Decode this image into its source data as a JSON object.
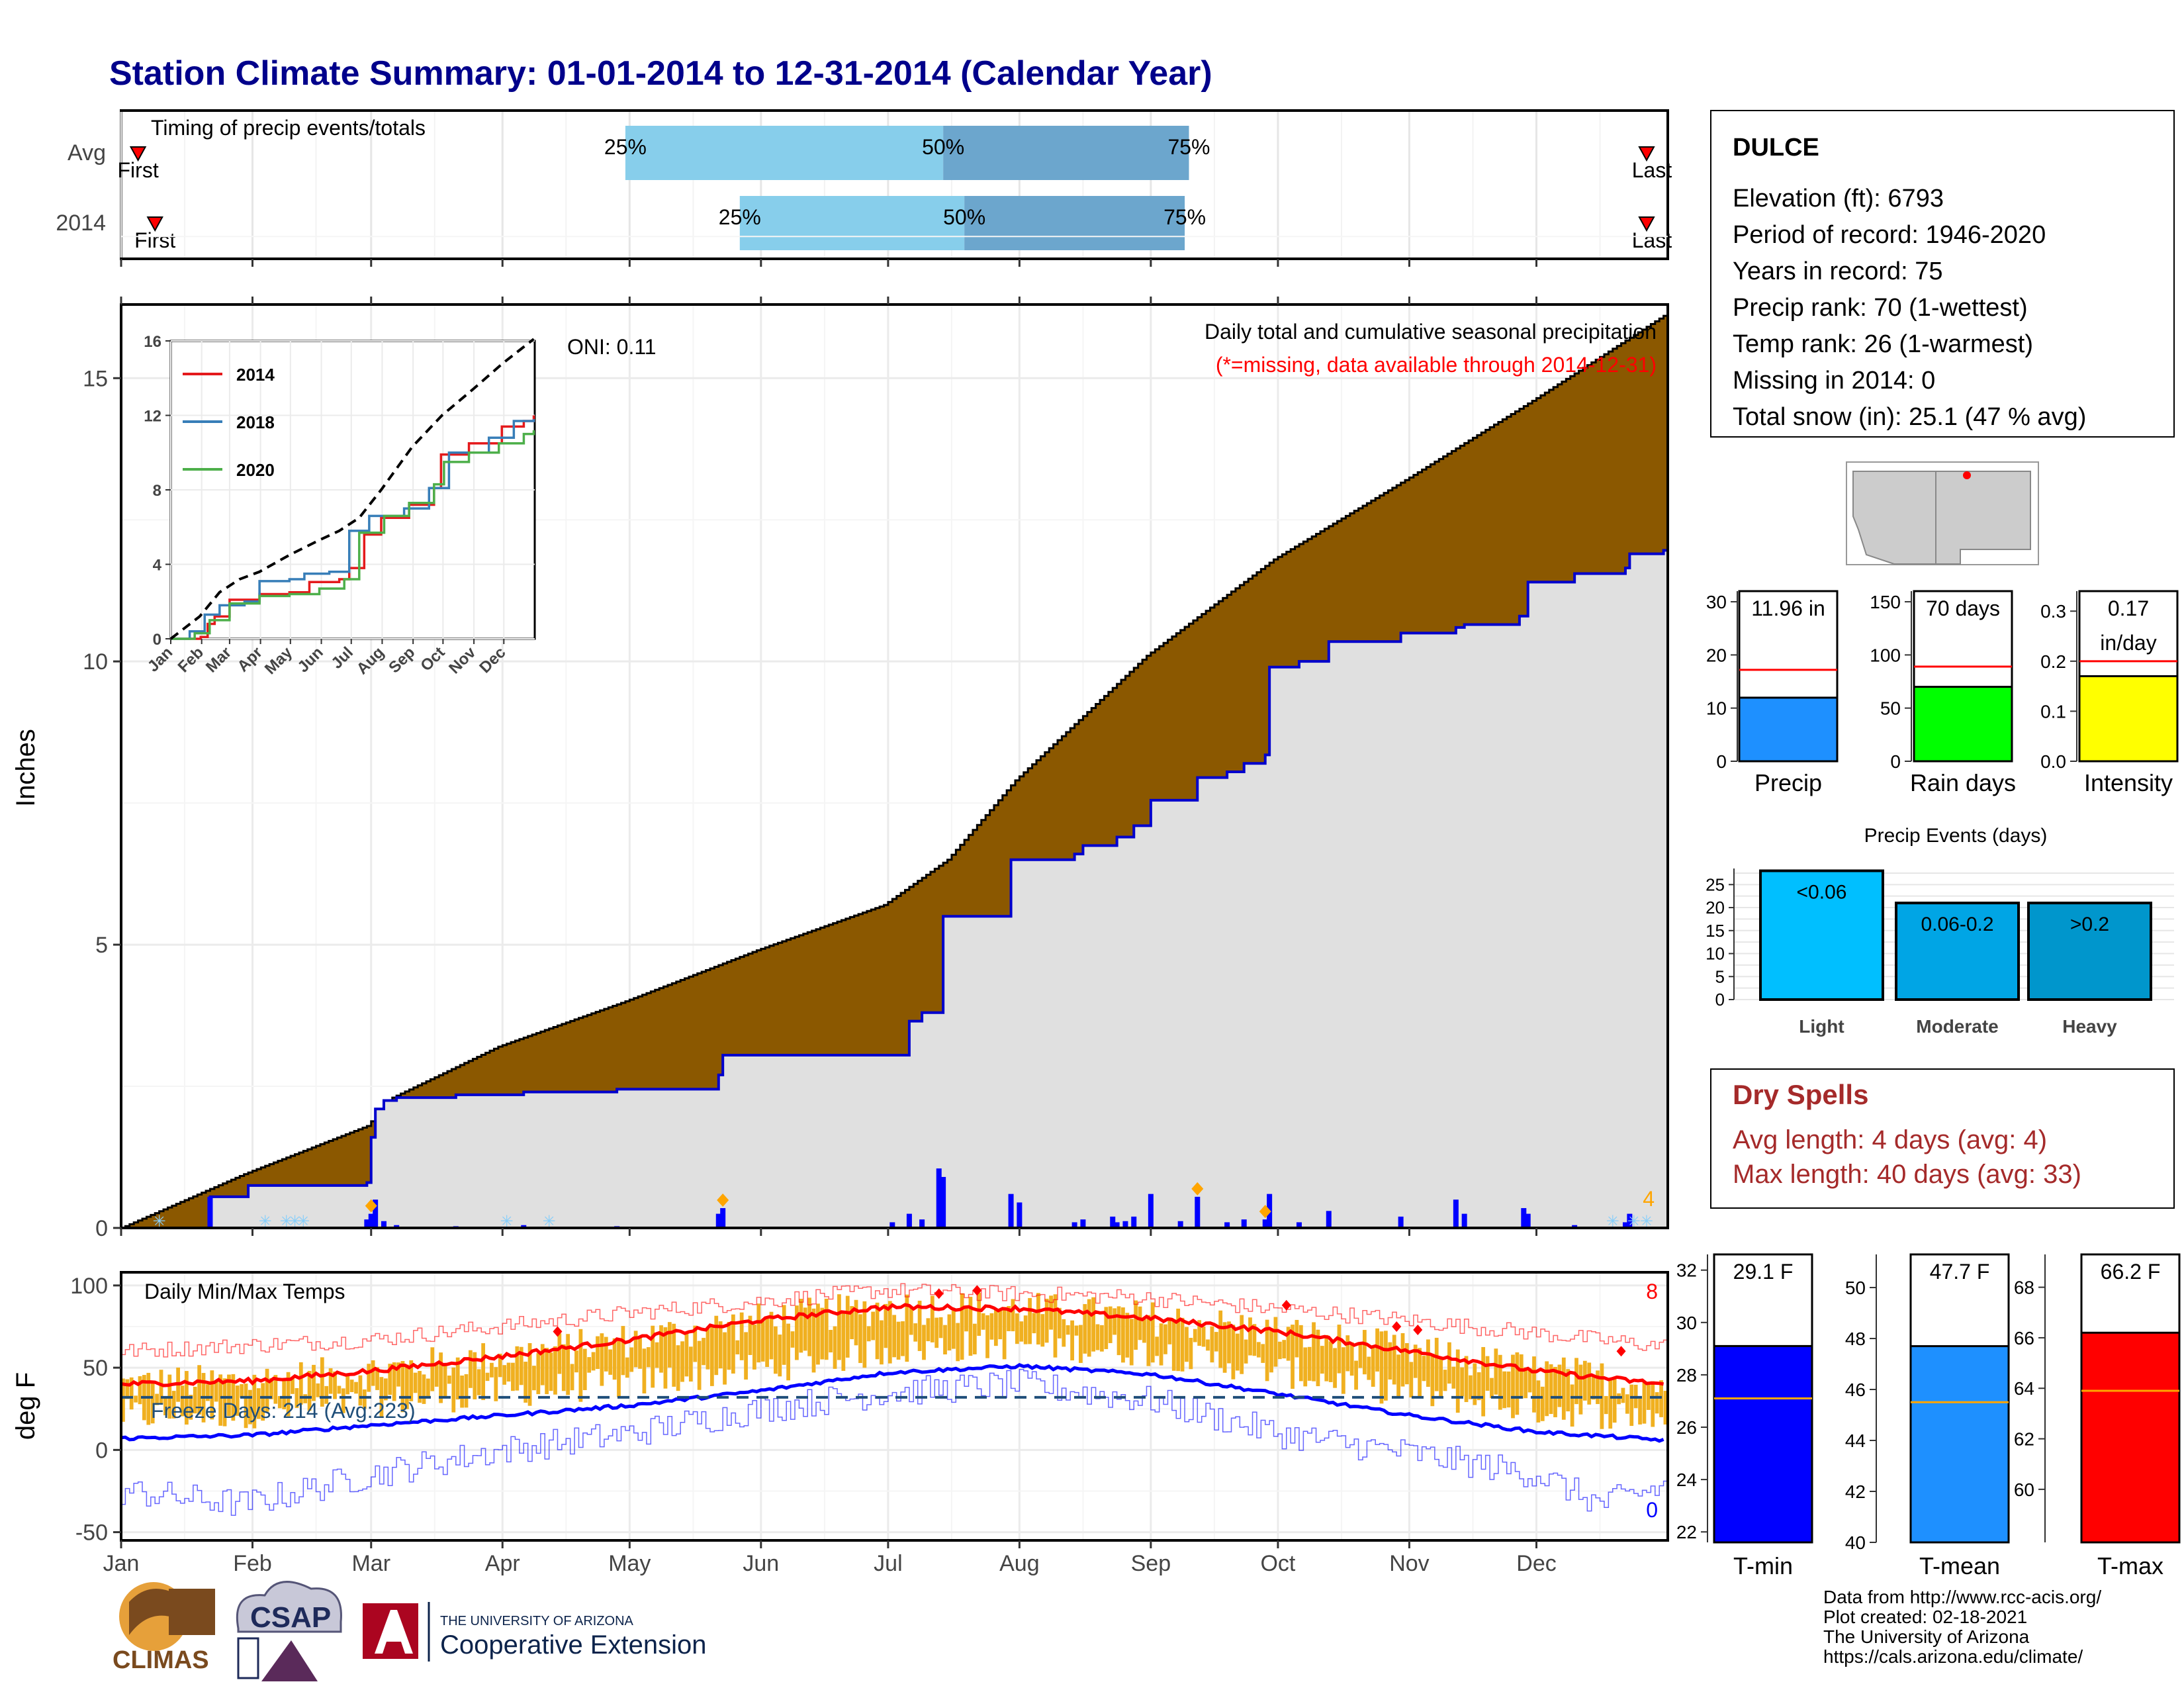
{
  "page_title": "Station Climate Summary: 01-01-2014 to 12-31-2014 (Calendar Year)",
  "timing": {
    "title": "Timing of precip events/totals",
    "rows": [
      {
        "label": "Avg",
        "q25": 120,
        "q50": 195,
        "q75": 253,
        "first": 5,
        "last": 361
      },
      {
        "label": "2014",
        "q25": 147,
        "q50": 200,
        "q75": 252,
        "first": 9,
        "last": 361
      }
    ],
    "pct_labels": [
      "25%",
      "50%",
      "75%"
    ],
    "first_label": "First",
    "last_label": "Last"
  },
  "precip_panel": {
    "title": "Daily total and cumulative seasonal precipitation",
    "missing_note": "(*=missing, data available through 2014-12-31)",
    "oni": "ONI: 0.11",
    "y_label": "Inches",
    "y_ticks": [
      "0",
      "5",
      "10",
      "15"
    ],
    "corner_count": "4"
  },
  "temp_panel": {
    "title": "Daily Min/Max Temps",
    "y_label": "deg F",
    "y_ticks": [
      "-50",
      "0",
      "50",
      "100"
    ],
    "freeze_text": "Freeze Days: 214 (Avg:223)",
    "hot_count": "8",
    "cold_count": "0"
  },
  "months": [
    "Jan",
    "Feb",
    "Mar",
    "Apr",
    "May",
    "Jun",
    "Jul",
    "Aug",
    "Sep",
    "Oct",
    "Nov",
    "Dec"
  ],
  "inset": {
    "y_ticks": [
      "0",
      "4",
      "8",
      "12",
      "16"
    ],
    "months": [
      "Jan",
      "Feb",
      "Mar",
      "Apr",
      "May",
      "Jun",
      "Jul",
      "Aug",
      "Sep",
      "Oct",
      "Nov",
      "Dec"
    ],
    "legend": [
      {
        "name": "2014",
        "color": "#e41a1c"
      },
      {
        "name": "2018",
        "color": "#377eb8"
      },
      {
        "name": "2020",
        "color": "#4daf4a"
      }
    ]
  },
  "station": {
    "name": "DULCE",
    "lines": [
      "Elevation (ft): 6793",
      "Period of record: 1946-2020",
      "Years in record: 75",
      "Precip rank: 70 (1-wettest)",
      "Temp rank: 26 (1-warmest)",
      "Missing in 2014: 0",
      "Total snow (in): 25.1 (47 % avg)"
    ]
  },
  "summary_bars": [
    {
      "label": "Precip",
      "value_text": "11.96 in",
      "value": 11.96,
      "avg": 17.2,
      "ymax": 32,
      "ticks": [
        "0",
        "10",
        "20",
        "30"
      ],
      "tick_vals": [
        0,
        10,
        20,
        30
      ],
      "color": "#1e90ff"
    },
    {
      "label": "Rain days",
      "value_text": "70 days",
      "value": 70,
      "avg": 89,
      "ymax": 160,
      "ticks": [
        "0",
        "50",
        "100",
        "150"
      ],
      "tick_vals": [
        0,
        50,
        100,
        150
      ],
      "color": "#00ff00"
    },
    {
      "label": "Intensity",
      "value_text": "0.17\nin/day",
      "value": 0.17,
      "avg": 0.2,
      "ymax": 0.34,
      "ticks": [
        "0.0",
        "0.1",
        "0.2",
        "0.3"
      ],
      "tick_vals": [
        0,
        0.1,
        0.2,
        0.3
      ],
      "color": "#ffff00"
    }
  ],
  "precip_events": {
    "title": "Precip Events (days)",
    "ticks": [
      "0",
      "5",
      "10",
      "15",
      "20",
      "25"
    ],
    "bars": [
      {
        "category": "Light",
        "label": "<0.06",
        "value": 28,
        "color": "#00bfff"
      },
      {
        "category": "Moderate",
        "label": "0.06-0.2",
        "value": 21,
        "color": "#00a5e5"
      },
      {
        "category": "Heavy",
        "label": ">0.2",
        "value": 21,
        "color": "#0096cc"
      }
    ]
  },
  "dry_spells": {
    "title": "Dry Spells",
    "avg_line": "Avg length: 4 days (avg: 4)",
    "max_line": "Max length: 40 days (avg: 33)"
  },
  "temp_bars": [
    {
      "label": "T-min",
      "value_text": "29.1 F",
      "value": 29.1,
      "avg": 27.1,
      "ymin": 21.6,
      "ymax": 32.6,
      "ticks": [
        "22",
        "24",
        "26",
        "28",
        "30",
        "32"
      ],
      "tick_vals": [
        22,
        24,
        26,
        28,
        30,
        32
      ],
      "color": "#0000ff"
    },
    {
      "label": "T-mean",
      "value_text": "47.7 F",
      "value": 47.7,
      "avg": 45.5,
      "ymin": 40,
      "ymax": 51.3,
      "ticks": [
        "40",
        "42",
        "44",
        "46",
        "48",
        "50"
      ],
      "tick_vals": [
        40,
        42,
        44,
        46,
        48,
        50
      ],
      "color": "#1e90ff"
    },
    {
      "label": "T-max",
      "value_text": "66.2 F",
      "value": 66.2,
      "avg": 63.9,
      "ymin": 57.9,
      "ymax": 69.3,
      "ticks": [
        "60",
        "62",
        "64",
        "66",
        "68"
      ],
      "tick_vals": [
        60,
        62,
        64,
        66,
        68
      ],
      "color": "#ff0000"
    }
  ],
  "footer": {
    "lines": [
      "Data from http://www.rcc-acis.org/",
      "Plot created: 02-18-2021",
      "The University of Arizona",
      "https://cals.arizona.edu/climate/"
    ],
    "climas": "CLIMAS",
    "csap": "CSAP",
    "ua_small": "THE UNIVERSITY OF ARIZONA",
    "ua_big": "Cooperative Extension"
  },
  "chart_data": [
    {
      "type": "area",
      "title": "Daily total and cumulative seasonal precipitation",
      "ylabel": "Inches",
      "ylim": [
        0,
        16.3
      ],
      "x_unit": "day of year",
      "grid": true,
      "cumulative_2014": [
        [
          1,
          0
        ],
        [
          21,
          0
        ],
        [
          22,
          0.55
        ],
        [
          31,
          0.75
        ],
        [
          59,
          0.8
        ],
        [
          60,
          1.6
        ],
        [
          61,
          2.1
        ],
        [
          63,
          2.25
        ],
        [
          66,
          2.3
        ],
        [
          80,
          2.35
        ],
        [
          96,
          2.4
        ],
        [
          118,
          2.45
        ],
        [
          142,
          2.7
        ],
        [
          143,
          3.05
        ],
        [
          183,
          3.05
        ],
        [
          187,
          3.65
        ],
        [
          190,
          3.8
        ],
        [
          195,
          5.5
        ],
        [
          210,
          5.5
        ],
        [
          211,
          6.5
        ],
        [
          226,
          6.6
        ],
        [
          228,
          6.75
        ],
        [
          236,
          6.9
        ],
        [
          240,
          7.1
        ],
        [
          244,
          7.55
        ],
        [
          255,
          7.95
        ],
        [
          262,
          8.05
        ],
        [
          266,
          8.2
        ],
        [
          271,
          8.35
        ],
        [
          272,
          9.9
        ],
        [
          279,
          10.0
        ],
        [
          285,
          10.0
        ],
        [
          286,
          10.35
        ],
        [
          301,
          10.35
        ],
        [
          303,
          10.5
        ],
        [
          316,
          10.6
        ],
        [
          318,
          10.65
        ],
        [
          331,
          10.8
        ],
        [
          333,
          11.4
        ],
        [
          344,
          11.55
        ],
        [
          356,
          11.65
        ],
        [
          357,
          11.9
        ],
        [
          365,
          11.96
        ]
      ],
      "cumulative_avg": [
        [
          1,
          0
        ],
        [
          30,
          0.95
        ],
        [
          59,
          1.8
        ],
        [
          65,
          2.3
        ],
        [
          90,
          3.2
        ],
        [
          120,
          4.0
        ],
        [
          151,
          4.9
        ],
        [
          181,
          5.7
        ],
        [
          196,
          6.5
        ],
        [
          212,
          7.9
        ],
        [
          243,
          10.1
        ],
        [
          273,
          11.8
        ],
        [
          304,
          13.2
        ],
        [
          334,
          14.6
        ],
        [
          365,
          16.1
        ]
      ],
      "daily_2014": [
        [
          22,
          0.55
        ],
        [
          59,
          0.15
        ],
        [
          60,
          0.25
        ],
        [
          61,
          0.5
        ],
        [
          63,
          0.12
        ],
        [
          66,
          0.05
        ],
        [
          80,
          0.03
        ],
        [
          96,
          0.05
        ],
        [
          118,
          0.03
        ],
        [
          142,
          0.25
        ],
        [
          143,
          0.35
        ],
        [
          183,
          0.1
        ],
        [
          187,
          0.25
        ],
        [
          190,
          0.15
        ],
        [
          194,
          1.05
        ],
        [
          195,
          0.9
        ],
        [
          211,
          0.6
        ],
        [
          213,
          0.45
        ],
        [
          226,
          0.1
        ],
        [
          228,
          0.15
        ],
        [
          235,
          0.2
        ],
        [
          236,
          0.1
        ],
        [
          238,
          0.12
        ],
        [
          240,
          0.2
        ],
        [
          244,
          0.6
        ],
        [
          251,
          0.12
        ],
        [
          255,
          0.55
        ],
        [
          262,
          0.1
        ],
        [
          266,
          0.15
        ],
        [
          271,
          0.15
        ],
        [
          272,
          0.6
        ],
        [
          279,
          0.1
        ],
        [
          286,
          0.3
        ],
        [
          303,
          0.2
        ],
        [
          316,
          0.5
        ],
        [
          318,
          0.25
        ],
        [
          332,
          0.35
        ],
        [
          333,
          0.25
        ],
        [
          344,
          0.05
        ],
        [
          356,
          0.1
        ],
        [
          357,
          0.25
        ]
      ],
      "hail_days": [
        60,
        143,
        255,
        271
      ]
    },
    {
      "type": "line",
      "title": "inset cumulative precipitation",
      "ylim": [
        0,
        16
      ],
      "series": [
        {
          "name": "2014",
          "points": [
            [
              1,
              0
            ],
            [
              31,
              0.1
            ],
            [
              38,
              0.8
            ],
            [
              45,
              1.2
            ],
            [
              60,
              2.1
            ],
            [
              90,
              2.4
            ],
            [
              120,
              2.5
            ],
            [
              140,
              3.05
            ],
            [
              170,
              3.2
            ],
            [
              180,
              3.8
            ],
            [
              195,
              5.6
            ],
            [
              212,
              6.5
            ],
            [
              240,
              7.2
            ],
            [
              265,
              8.1
            ],
            [
              272,
              9.9
            ],
            [
              300,
              10.5
            ],
            [
              333,
              11.4
            ],
            [
              355,
              11.7
            ],
            [
              365,
              12.0
            ]
          ]
        },
        {
          "name": "2018",
          "points": [
            [
              1,
              0
            ],
            [
              20,
              0.4
            ],
            [
              35,
              1.3
            ],
            [
              50,
              1.8
            ],
            [
              75,
              2.0
            ],
            [
              90,
              3.1
            ],
            [
              120,
              3.2
            ],
            [
              135,
              3.5
            ],
            [
              160,
              3.6
            ],
            [
              180,
              5.8
            ],
            [
              200,
              6.6
            ],
            [
              235,
              7.0
            ],
            [
              260,
              8.1
            ],
            [
              280,
              10.0
            ],
            [
              320,
              10.8
            ],
            [
              345,
              11.7
            ],
            [
              365,
              11.8
            ]
          ]
        },
        {
          "name": "2020",
          "points": [
            [
              1,
              0
            ],
            [
              25,
              0.3
            ],
            [
              40,
              1.0
            ],
            [
              60,
              1.9
            ],
            [
              90,
              2.3
            ],
            [
              120,
              2.4
            ],
            [
              150,
              2.7
            ],
            [
              175,
              3.2
            ],
            [
              190,
              5.7
            ],
            [
              215,
              6.6
            ],
            [
              240,
              7.3
            ],
            [
              265,
              8.3
            ],
            [
              275,
              9.5
            ],
            [
              300,
              10.0
            ],
            [
              330,
              10.5
            ],
            [
              355,
              11.0
            ],
            [
              365,
              11.2
            ]
          ]
        },
        {
          "name": "avg",
          "points": [
            [
              1,
              0
            ],
            [
              30,
              1.2
            ],
            [
              50,
              2.5
            ],
            [
              70,
              3.2
            ],
            [
              90,
              3.6
            ],
            [
              120,
              4.5
            ],
            [
              150,
              5.3
            ],
            [
              170,
              5.8
            ],
            [
              190,
              6.5
            ],
            [
              212,
              8.0
            ],
            [
              243,
              10.3
            ],
            [
              273,
              12.0
            ],
            [
              304,
              13.4
            ],
            [
              334,
              14.8
            ],
            [
              365,
              16.1
            ]
          ]
        }
      ]
    },
    {
      "type": "line",
      "title": "Daily Min/Max Temps",
      "ylabel": "deg F",
      "ylim": [
        -55,
        108
      ],
      "freeze_line": 32,
      "normal_max": [
        [
          1,
          40
        ],
        [
          32,
          42
        ],
        [
          60,
          48
        ],
        [
          91,
          57
        ],
        [
          121,
          67
        ],
        [
          152,
          79
        ],
        [
          182,
          87
        ],
        [
          213,
          86
        ],
        [
          244,
          80
        ],
        [
          274,
          72
        ],
        [
          305,
          60
        ],
        [
          335,
          48
        ],
        [
          365,
          40
        ]
      ],
      "normal_min": [
        [
          1,
          7
        ],
        [
          32,
          9
        ],
        [
          60,
          15
        ],
        [
          91,
          21
        ],
        [
          121,
          27
        ],
        [
          152,
          36
        ],
        [
          182,
          47
        ],
        [
          213,
          51
        ],
        [
          244,
          46
        ],
        [
          274,
          34
        ],
        [
          305,
          21
        ],
        [
          335,
          11
        ],
        [
          365,
          6
        ]
      ],
      "record_high": [
        [
          1,
          60
        ],
        [
          60,
          67
        ],
        [
          120,
          83
        ],
        [
          180,
          97
        ],
        [
          240,
          93
        ],
        [
          300,
          80
        ],
        [
          365,
          63
        ]
      ],
      "record_low": [
        [
          1,
          -25
        ],
        [
          30,
          -33
        ],
        [
          60,
          -15
        ],
        [
          91,
          0
        ],
        [
          121,
          10
        ],
        [
          152,
          25
        ],
        [
          182,
          35
        ],
        [
          213,
          40
        ],
        [
          244,
          30
        ],
        [
          274,
          10
        ],
        [
          305,
          -2
        ],
        [
          335,
          -15
        ],
        [
          350,
          -33
        ],
        [
          365,
          -22
        ]
      ],
      "record_days": [
        [
          104,
          72
        ],
        [
          194,
          95
        ],
        [
          203,
          97
        ],
        [
          276,
          88
        ],
        [
          302,
          75
        ],
        [
          307,
          73
        ],
        [
          355,
          60
        ]
      ]
    }
  ]
}
